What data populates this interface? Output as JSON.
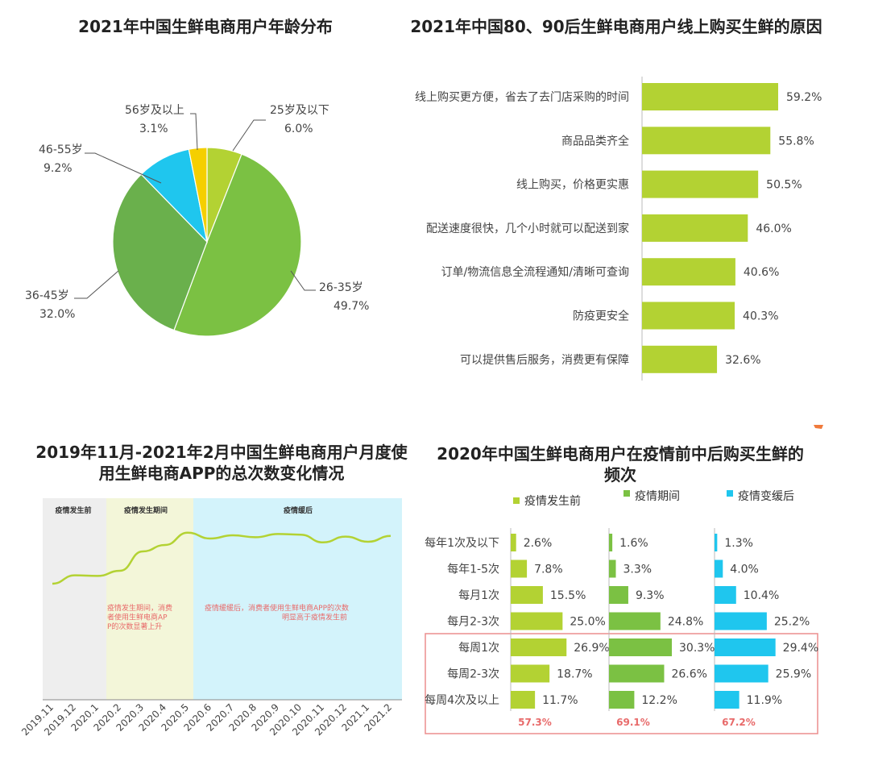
{
  "colors": {
    "lime": "#b3d233",
    "green": "#7bc143",
    "darkgreen": "#6ab04c",
    "cyan": "#1fc6ee",
    "yellow": "#f5cf00",
    "red": "#e86a6a"
  },
  "chart_data": [
    {
      "type": "pie",
      "title": "2021年中国生鲜电商用户年龄分布",
      "slices": [
        {
          "label": "25岁及以下",
          "value": 6.0,
          "value_label": "6.0%"
        },
        {
          "label": "26-35岁",
          "value": 49.7,
          "value_label": "49.7%"
        },
        {
          "label": "36-45岁",
          "value": 32.0,
          "value_label": "32.0%"
        },
        {
          "label": "46-55岁",
          "value": 9.2,
          "value_label": "9.2%"
        },
        {
          "label": "56岁及以上",
          "value": 3.1,
          "value_label": "3.1%"
        }
      ]
    },
    {
      "type": "bar",
      "orientation": "horizontal",
      "title": "2021年中国80、90后生鲜电商用户线上购买生鲜的原因",
      "categories": [
        "线上购买更方便，省去了去门店采购的时间",
        "商品品类齐全",
        "线上购买，价格更实惠",
        "配送速度很快，几个小时就可以配送到家",
        "订单/物流信息全流程通知/清晰可查询",
        "防疫更安全",
        "可以提供售后服务，消费更有保障"
      ],
      "values": [
        59.2,
        55.8,
        50.5,
        46.0,
        40.6,
        40.3,
        32.6
      ],
      "value_labels": [
        "59.2%",
        "55.8%",
        "50.5%",
        "46.0%",
        "40.6%",
        "40.3%",
        "32.6%"
      ]
    },
    {
      "type": "line",
      "title": "2019年11月-2021年2月中国生鲜电商用户月度使用生鲜电商APP的总次数变化情况",
      "x": [
        "2019.11",
        "2019.12",
        "2020.1",
        "2020.2",
        "2020.3",
        "2020.4",
        "2020.5",
        "2020.6",
        "2020.7",
        "2020.8",
        "2020.9",
        "2020.10",
        "2020.11",
        "2020.12",
        "2021.1",
        "2021.2"
      ],
      "values": [
        20,
        33,
        32,
        40,
        70,
        80,
        99,
        90,
        95,
        92,
        97,
        96,
        84,
        93,
        85,
        94
      ],
      "value_note": "no y-axis shown; relative values estimated",
      "phases": [
        {
          "label": "疫情发生前",
          "annotation": ""
        },
        {
          "label": "疫情发生期间",
          "annotation": "疫情发生期间，消费者使用生鲜电商APP的次数显著上升"
        },
        {
          "label": "疫情缓后",
          "annotation": "疫情缓缓后，消费者使用生鲜电商APP的次数明显高于疫情发生前"
        }
      ]
    },
    {
      "type": "bar",
      "orientation": "horizontal",
      "title": "2020年中国生鲜电商用户在疫情前中后购买生鲜的频次",
      "categories": [
        "每年1次及以下",
        "每年1-5次",
        "每月1次",
        "每月2-3次",
        "每周1次",
        "每周2-3次",
        "每周4次及以上"
      ],
      "series": [
        {
          "name": "疫情发生前",
          "values": [
            2.6,
            7.8,
            15.5,
            25.0,
            26.9,
            18.7,
            11.7
          ],
          "value_labels": [
            "2.6%",
            "7.8%",
            "15.5%",
            "25.0%",
            "26.9%",
            "18.7%",
            "11.7%"
          ],
          "total_label": "57.3%"
        },
        {
          "name": "疫情期间",
          "values": [
            1.6,
            3.3,
            9.3,
            24.8,
            30.3,
            26.6,
            12.2
          ],
          "value_labels": [
            "1.6%",
            "3.3%",
            "9.3%",
            "24.8%",
            "30.3%",
            "26.6%",
            "12.2%"
          ],
          "total_label": "69.1%"
        },
        {
          "name": "疫情变缓后",
          "values": [
            1.3,
            4.0,
            10.4,
            25.2,
            29.4,
            25.9,
            11.9
          ],
          "value_labels": [
            "1.3%",
            "4.0%",
            "10.4%",
            "25.2%",
            "29.4%",
            "25.9%",
            "11.9%"
          ],
          "total_label": "67.2%"
        }
      ]
    }
  ]
}
